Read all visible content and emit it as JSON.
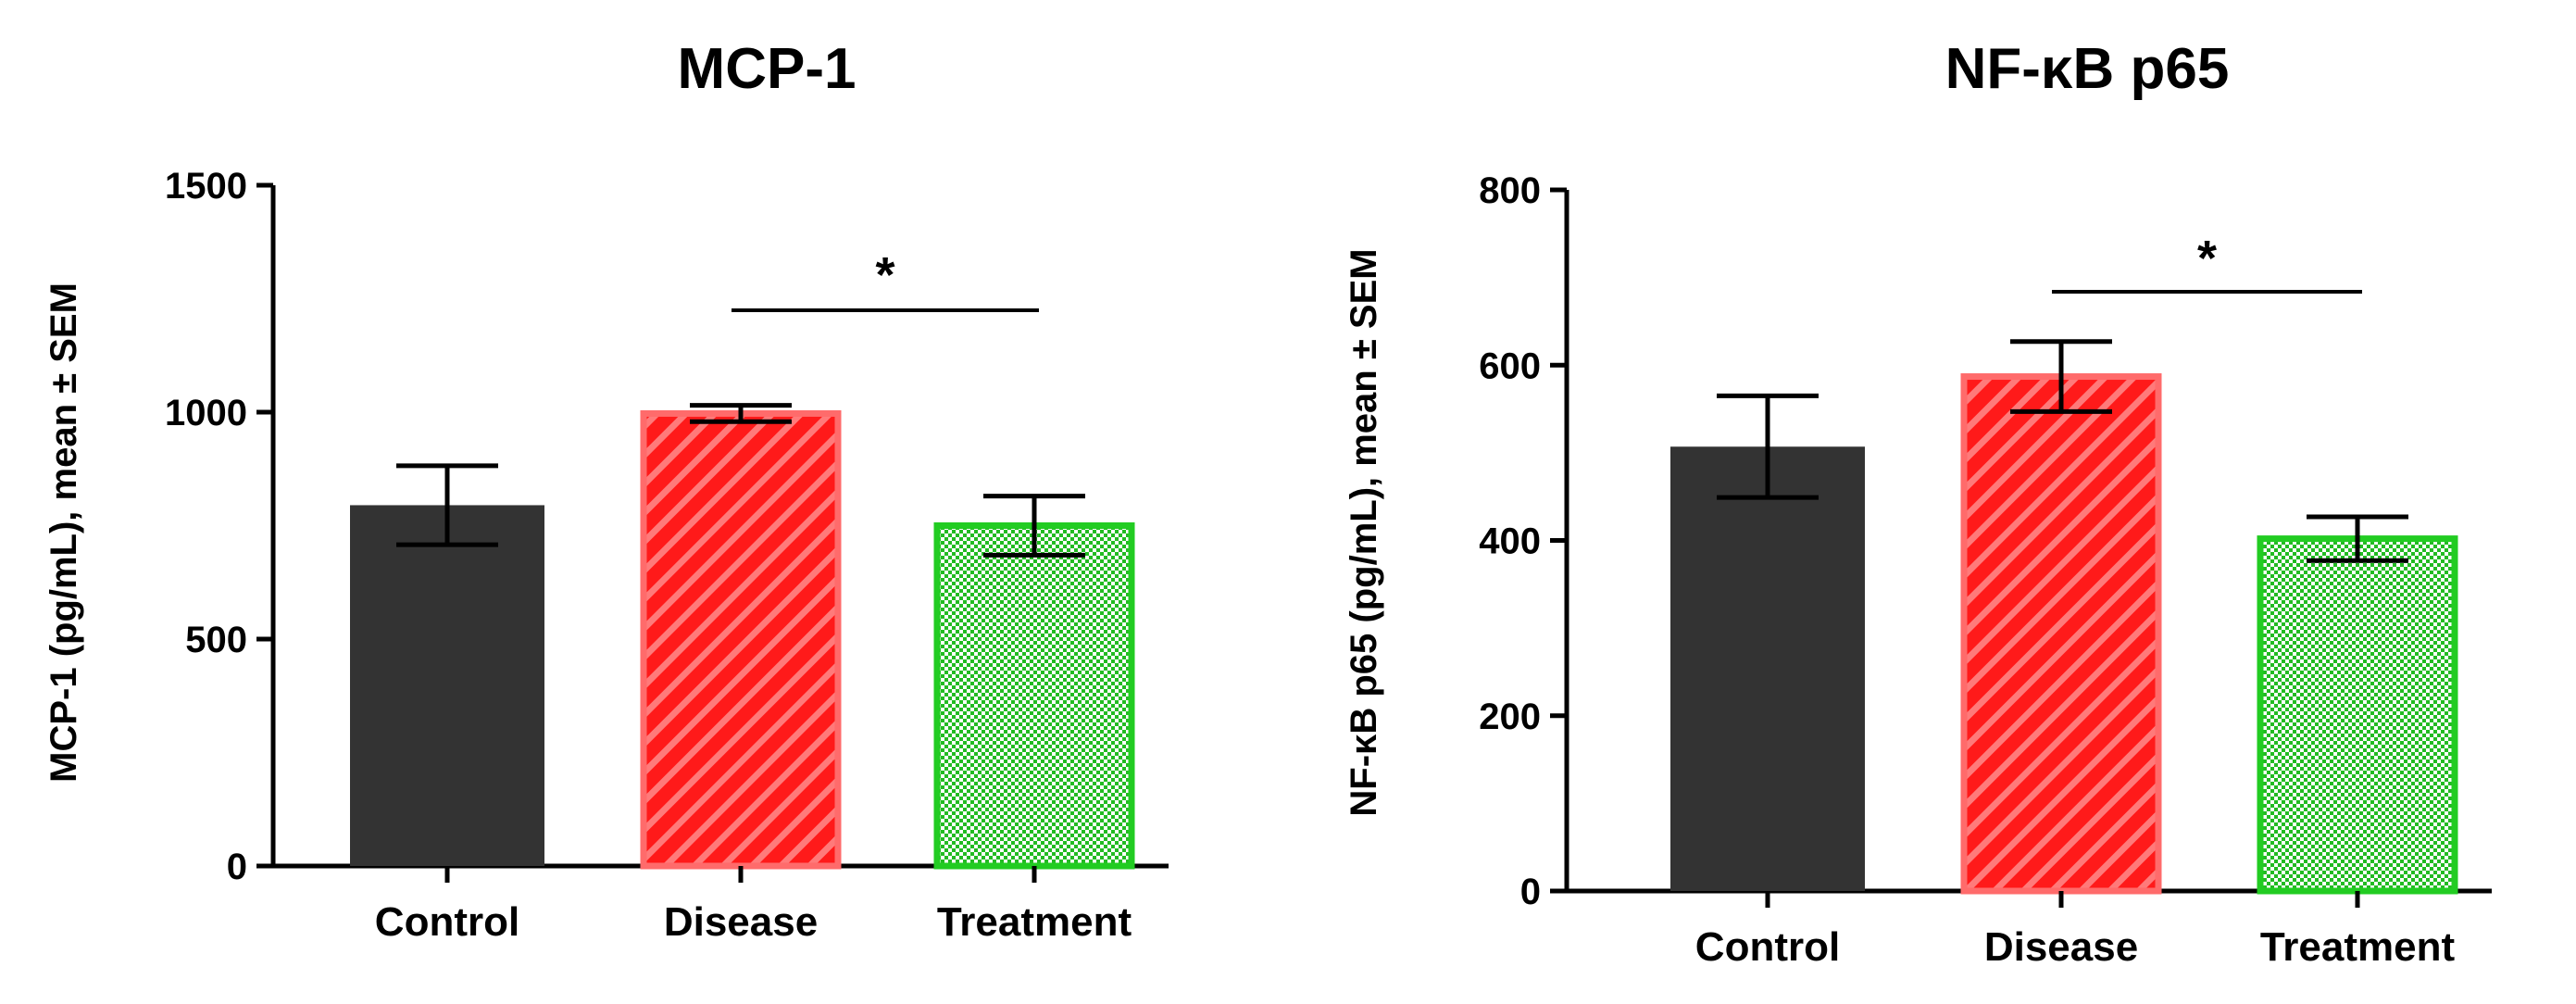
{
  "chart_data": [
    {
      "type": "bar",
      "title": "MCP-1",
      "xlabel": "",
      "ylabel": "MCP-1 (pg/mL), mean ± SEM",
      "categories": [
        "Control",
        "Disease",
        "Treatment"
      ],
      "values": [
        795,
        997,
        750
      ],
      "errors": [
        87,
        18,
        65
      ],
      "ylim": [
        0,
        1500
      ],
      "yticks": [
        0,
        500,
        1000,
        1500
      ],
      "significance": {
        "from": "Disease",
        "to": "Treatment",
        "label": "*"
      },
      "bar_styles": [
        {
          "fill": "#333333",
          "pattern": "solid",
          "edge": "#333333"
        },
        {
          "fill": "#ff1a1a",
          "pattern": "diagonal-stripes",
          "edge": "#ff6b6b"
        },
        {
          "fill": "#22bb22",
          "pattern": "checker",
          "edge": "#22cc22"
        }
      ]
    },
    {
      "type": "bar",
      "title": "NF-κB p65",
      "xlabel": "",
      "ylabel": "NF-κB p65 (pg/mL), mean ± SEM",
      "categories": [
        "Control",
        "Disease",
        "Treatment"
      ],
      "values": [
        507,
        587,
        402
      ],
      "errors": [
        58,
        40,
        25
      ],
      "ylim": [
        0,
        800
      ],
      "yticks": [
        0,
        200,
        400,
        600,
        800
      ],
      "significance": {
        "from": "Disease",
        "to": "Treatment",
        "label": "*"
      },
      "bar_styles": [
        {
          "fill": "#333333",
          "pattern": "solid",
          "edge": "#333333"
        },
        {
          "fill": "#ff1a1a",
          "pattern": "diagonal-stripes",
          "edge": "#ff6b6b"
        },
        {
          "fill": "#22bb22",
          "pattern": "checker",
          "edge": "#22cc22"
        }
      ]
    }
  ]
}
